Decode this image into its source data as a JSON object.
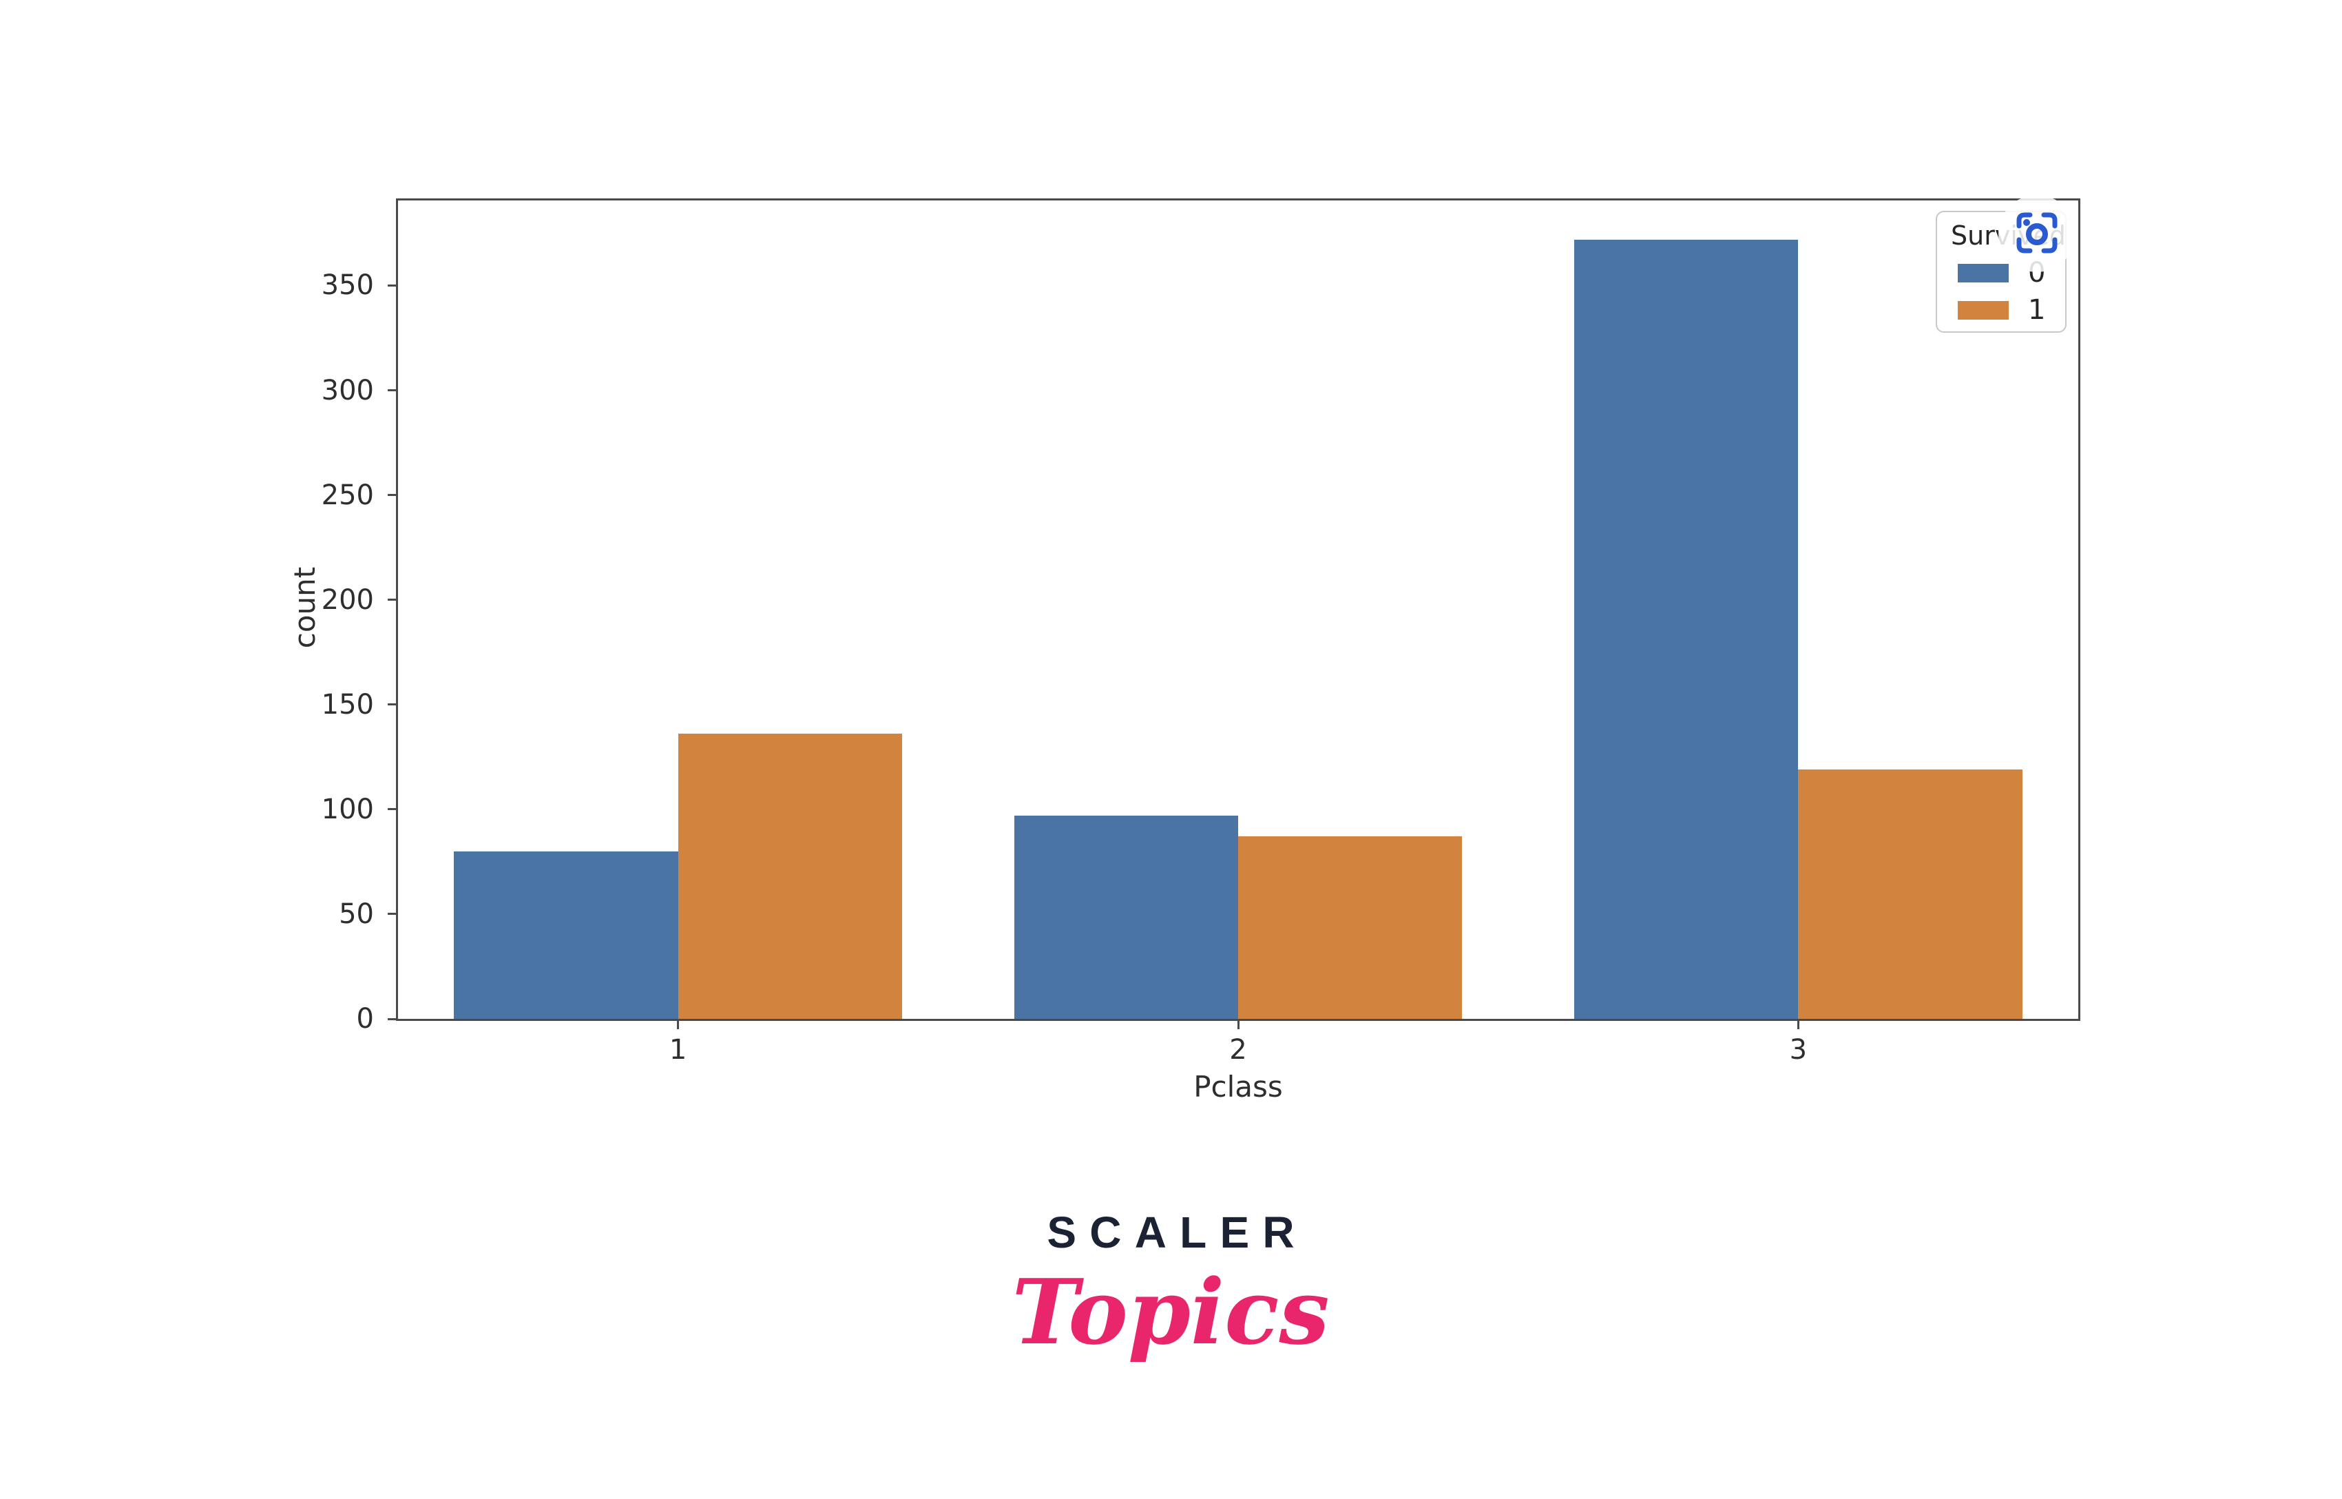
{
  "chart_data": {
    "type": "bar",
    "title": "",
    "xlabel": "Pclass",
    "ylabel": "count",
    "categories": [
      "1",
      "2",
      "3"
    ],
    "series": [
      {
        "name": "0",
        "color": "#4a74a4",
        "values": [
          80,
          97,
          372
        ]
      },
      {
        "name": "1",
        "color": "#d2833d",
        "values": [
          136,
          87,
          119
        ]
      }
    ],
    "legend": {
      "title": "Survived",
      "position": "upper right"
    },
    "ylim": [
      0,
      390.6
    ],
    "yticks": [
      0,
      50,
      100,
      150,
      200,
      250,
      300,
      350
    ],
    "grid": false,
    "bar_group_width": 0.8
  },
  "overlay": {
    "icon": "screenshot-search-icon",
    "icon_color": "#2a5ad0"
  },
  "logo": {
    "brand": "SCALER",
    "product": "Topics",
    "brand_color": "#1b2233",
    "product_color": "#e9266b"
  }
}
